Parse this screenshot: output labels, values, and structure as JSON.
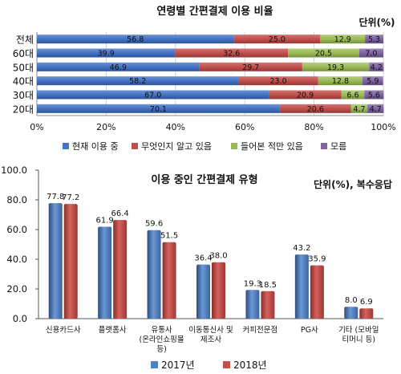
{
  "chart_data": [
    {
      "type": "bar",
      "orientation": "horizontal",
      "stacked": true,
      "title": "연령별 간편결제 이용 비율",
      "unit_label": "단위(%)",
      "categories": [
        "전체",
        "60대",
        "50대",
        "40대",
        "30대",
        "20대"
      ],
      "series": [
        {
          "name": "현재 이용 중",
          "values": [
            56.8,
            39.9,
            46.9,
            58.2,
            67.0,
            70.1
          ],
          "labels": [
            "56.8",
            "39.9",
            "46.9",
            "58.2",
            "67.0",
            "70.1"
          ]
        },
        {
          "name": "무엇인지 알고 있음",
          "values": [
            25.0,
            32.6,
            29.7,
            23.0,
            20.9,
            20.6
          ],
          "labels": [
            "25.0",
            "32.6",
            "29.7",
            "23.0",
            "20.9",
            "20.6"
          ]
        },
        {
          "name": "들어본 적만 있음",
          "values": [
            12.9,
            20.5,
            19.3,
            12.8,
            6.6,
            4.7
          ],
          "labels": [
            "12.9",
            "20.5",
            "19.3",
            "12.8",
            "6.6",
            "4.7"
          ]
        },
        {
          "name": "모름",
          "values": [
            5.3,
            7.0,
            4.2,
            5.9,
            5.6,
            4.7
          ],
          "labels": [
            "5.3",
            "7.0",
            "4.2",
            "5.9",
            "5.6",
            "4.7"
          ]
        }
      ],
      "xlim": [
        0,
        100
      ],
      "x_ticks": [
        "0%",
        "20%",
        "40%",
        "60%",
        "80%",
        "100%"
      ],
      "legend": "bottom",
      "colors": [
        "#4472c4",
        "#c0504d",
        "#9bbb59",
        "#8064a2"
      ]
    },
    {
      "type": "bar",
      "title": "이용 중인 간편결제 유형",
      "unit_label": "단위(%), 복수응답",
      "categories": [
        [
          "신용카드사"
        ],
        [
          "플랫폼사"
        ],
        [
          "유통사",
          "(온라인쇼핑몰",
          "등)"
        ],
        [
          "이동통신사 및",
          "제조사"
        ],
        [
          "커피전문점"
        ],
        [
          "PG사"
        ],
        [
          "기타 (모바일",
          "티머니 등)"
        ]
      ],
      "series": [
        {
          "name": "2017년",
          "values": [
            77.8,
            61.9,
            59.6,
            36.4,
            19.3,
            43.2,
            8.0
          ],
          "labels": [
            "77.8",
            "61.9",
            "59.6",
            "36.4",
            "19.3",
            "43.2",
            "8.0"
          ]
        },
        {
          "name": "2018년",
          "values": [
            77.2,
            66.4,
            51.5,
            38.0,
            18.5,
            35.9,
            6.9
          ],
          "labels": [
            "77.2",
            "66.4",
            "51.5",
            "38.0",
            "18.5",
            "35.9",
            "6.9"
          ]
        }
      ],
      "ylim": [
        0,
        100
      ],
      "y_ticks": [
        "0.0",
        "20.0",
        "40.0",
        "60.0",
        "80.0",
        "100.0"
      ],
      "legend": "bottom",
      "colors": [
        "#4f81bd",
        "#c0504d"
      ]
    }
  ]
}
